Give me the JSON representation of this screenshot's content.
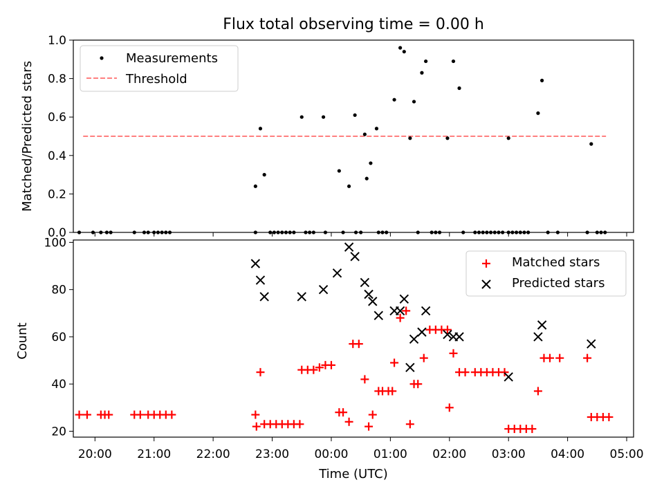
{
  "figure": {
    "title": "Flux total observing time = 0.00 h"
  },
  "chart_data": [
    {
      "type": "scatter",
      "panel": "top",
      "title": "Flux total observing time = 0.00 h",
      "xlabel": "",
      "ylabel": "Matched/Predicted stars",
      "xlim": [
        "19:38",
        "05:07"
      ],
      "ylim": [
        0,
        1.0
      ],
      "y_ticks": [
        "0.0",
        "0.2",
        "0.4",
        "0.6",
        "0.8",
        "1.0"
      ],
      "legend": {
        "placement": "top-left",
        "entries": [
          "Measurements",
          "Threshold"
        ]
      },
      "series": [
        {
          "name": "Measurements",
          "marker": "dot",
          "color": "#000000",
          "points": [
            [
              "19:44",
              0
            ],
            [
              "19:58",
              0
            ],
            [
              "20:06",
              0
            ],
            [
              "20:12",
              0
            ],
            [
              "20:16",
              0
            ],
            [
              "20:40",
              0
            ],
            [
              "20:50",
              0
            ],
            [
              "20:54",
              0
            ],
            [
              "21:00",
              0
            ],
            [
              "21:04",
              0
            ],
            [
              "21:08",
              0
            ],
            [
              "21:12",
              0
            ],
            [
              "21:16",
              0
            ],
            [
              "22:43",
              0.24
            ],
            [
              "22:48",
              0.54
            ],
            [
              "22:52",
              0.3
            ],
            [
              "22:43",
              0
            ],
            [
              "22:58",
              0
            ],
            [
              "23:02",
              0
            ],
            [
              "23:06",
              0
            ],
            [
              "23:10",
              0
            ],
            [
              "23:14",
              0
            ],
            [
              "23:18",
              0
            ],
            [
              "23:22",
              0
            ],
            [
              "23:30",
              0.6
            ],
            [
              "23:34",
              0
            ],
            [
              "23:38",
              0
            ],
            [
              "23:42",
              0
            ],
            [
              "23:52",
              0.6
            ],
            [
              "23:54",
              0
            ],
            [
              "24:08",
              0.32
            ],
            [
              "24:18",
              0.24
            ],
            [
              "24:24",
              0.61
            ],
            [
              "24:34",
              0.51
            ],
            [
              "24:36",
              0.28
            ],
            [
              "24:40",
              0.36
            ],
            [
              "24:46",
              0.54
            ],
            [
              "24:12",
              0
            ],
            [
              "24:25",
              0
            ],
            [
              "24:30",
              0
            ],
            [
              "24:48",
              0
            ],
            [
              "24:52",
              0
            ],
            [
              "24:56",
              0
            ],
            [
              "25:04",
              0.69
            ],
            [
              "25:10",
              0.96
            ],
            [
              "25:14",
              0.94
            ],
            [
              "25:20",
              0.49
            ],
            [
              "25:24",
              0.68
            ],
            [
              "25:32",
              0.83
            ],
            [
              "25:36",
              0.89
            ],
            [
              "25:28",
              0
            ],
            [
              "25:42",
              0
            ],
            [
              "25:46",
              0
            ],
            [
              "25:50",
              0
            ],
            [
              "25:58",
              0.49
            ],
            [
              "26:04",
              0.89
            ],
            [
              "26:10",
              0.75
            ],
            [
              "26:14",
              0
            ],
            [
              "26:26",
              0
            ],
            [
              "26:30",
              0
            ],
            [
              "26:34",
              0
            ],
            [
              "26:38",
              0
            ],
            [
              "26:42",
              0
            ],
            [
              "26:46",
              0
            ],
            [
              "26:50",
              0
            ],
            [
              "26:54",
              0
            ],
            [
              "27:00",
              0.49
            ],
            [
              "27:00",
              0
            ],
            [
              "27:04",
              0
            ],
            [
              "27:08",
              0
            ],
            [
              "27:12",
              0
            ],
            [
              "27:16",
              0
            ],
            [
              "27:20",
              0
            ],
            [
              "27:30",
              0.62
            ],
            [
              "27:34",
              0.79
            ],
            [
              "27:40",
              0
            ],
            [
              "27:50",
              0
            ],
            [
              "28:20",
              0
            ],
            [
              "28:24",
              0.46
            ],
            [
              "28:30",
              0
            ],
            [
              "28:34",
              0
            ],
            [
              "28:38",
              0
            ]
          ]
        },
        {
          "name": "Threshold",
          "style": "dashed",
          "color": "#ff7f7f",
          "x_range": [
            "19:48",
            "28:39"
          ],
          "y": 0.5
        }
      ]
    },
    {
      "type": "scatter",
      "panel": "bottom",
      "xlabel": "Time (UTC)",
      "ylabel": "Count",
      "xlim": [
        "19:38",
        "05:07"
      ],
      "ylim": [
        17.5,
        101
      ],
      "x_ticks": [
        "20:00",
        "21:00",
        "22:00",
        "23:00",
        "00:00",
        "01:00",
        "02:00",
        "03:00",
        "04:00",
        "05:00"
      ],
      "y_ticks": [
        "20",
        "40",
        "60",
        "80",
        "100"
      ],
      "legend": {
        "placement": "top-right",
        "entries": [
          "Matched stars",
          "Predicted stars"
        ]
      },
      "series": [
        {
          "name": "Matched stars",
          "marker": "plus",
          "color": "#ff0000",
          "points": [
            [
              "19:44",
              27
            ],
            [
              "19:52",
              27
            ],
            [
              "20:06",
              27
            ],
            [
              "20:10",
              27
            ],
            [
              "20:14",
              27
            ],
            [
              "20:40",
              27
            ],
            [
              "20:46",
              27
            ],
            [
              "20:54",
              27
            ],
            [
              "21:00",
              27
            ],
            [
              "21:06",
              27
            ],
            [
              "21:12",
              27
            ],
            [
              "21:18",
              27
            ],
            [
              "22:43",
              27
            ],
            [
              "22:44",
              22
            ],
            [
              "22:48",
              45
            ],
            [
              "22:52",
              23
            ],
            [
              "22:58",
              23
            ],
            [
              "23:04",
              23
            ],
            [
              "23:10",
              23
            ],
            [
              "23:16",
              23
            ],
            [
              "23:22",
              23
            ],
            [
              "23:28",
              23
            ],
            [
              "23:30",
              46
            ],
            [
              "23:36",
              46
            ],
            [
              "23:42",
              46
            ],
            [
              "23:48",
              47
            ],
            [
              "23:54",
              48
            ],
            [
              "24:00",
              48
            ],
            [
              "24:08",
              28
            ],
            [
              "24:12",
              28
            ],
            [
              "24:18",
              24
            ],
            [
              "24:22",
              57
            ],
            [
              "24:28",
              57
            ],
            [
              "24:34",
              42
            ],
            [
              "24:38",
              22
            ],
            [
              "24:42",
              27
            ],
            [
              "24:48",
              37
            ],
            [
              "24:52",
              37
            ],
            [
              "24:58",
              37
            ],
            [
              "25:02",
              37
            ],
            [
              "25:04",
              49
            ],
            [
              "25:10",
              68
            ],
            [
              "25:16",
              71
            ],
            [
              "25:20",
              23
            ],
            [
              "25:24",
              40
            ],
            [
              "25:28",
              40
            ],
            [
              "25:34",
              51
            ],
            [
              "25:40",
              63
            ],
            [
              "25:46",
              63
            ],
            [
              "25:52",
              63
            ],
            [
              "25:58",
              63
            ],
            [
              "26:00",
              30
            ],
            [
              "26:04",
              53
            ],
            [
              "26:10",
              45
            ],
            [
              "26:16",
              45
            ],
            [
              "26:26",
              45
            ],
            [
              "26:32",
              45
            ],
            [
              "26:38",
              45
            ],
            [
              "26:44",
              45
            ],
            [
              "26:50",
              45
            ],
            [
              "26:56",
              45
            ],
            [
              "27:00",
              21
            ],
            [
              "27:06",
              21
            ],
            [
              "27:12",
              21
            ],
            [
              "27:18",
              21
            ],
            [
              "27:24",
              21
            ],
            [
              "27:30",
              37
            ],
            [
              "27:36",
              51
            ],
            [
              "27:42",
              51
            ],
            [
              "27:52",
              51
            ],
            [
              "28:20",
              51
            ],
            [
              "28:24",
              26
            ],
            [
              "28:30",
              26
            ],
            [
              "28:36",
              26
            ],
            [
              "28:42",
              26
            ]
          ]
        },
        {
          "name": "Predicted stars",
          "marker": "x",
          "color": "#000000",
          "points": [
            [
              "22:43",
              91
            ],
            [
              "22:48",
              84
            ],
            [
              "22:52",
              77
            ],
            [
              "23:30",
              77
            ],
            [
              "23:52",
              80
            ],
            [
              "24:06",
              87
            ],
            [
              "24:18",
              98
            ],
            [
              "24:24",
              94
            ],
            [
              "24:34",
              83
            ],
            [
              "24:38",
              78
            ],
            [
              "24:42",
              75
            ],
            [
              "24:48",
              69
            ],
            [
              "25:04",
              71
            ],
            [
              "25:10",
              71
            ],
            [
              "25:14",
              76
            ],
            [
              "25:20",
              47
            ],
            [
              "25:24",
              59
            ],
            [
              "25:32",
              62
            ],
            [
              "25:36",
              71
            ],
            [
              "25:58",
              61
            ],
            [
              "26:04",
              60
            ],
            [
              "26:10",
              60
            ],
            [
              "27:00",
              43
            ],
            [
              "27:30",
              60
            ],
            [
              "27:34",
              65
            ],
            [
              "28:24",
              57
            ]
          ]
        }
      ]
    }
  ]
}
